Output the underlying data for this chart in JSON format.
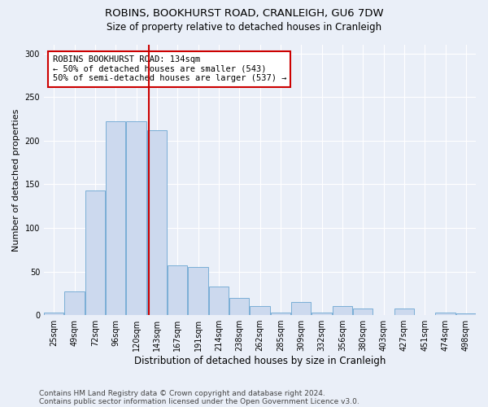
{
  "title1": "ROBINS, BOOKHURST ROAD, CRANLEIGH, GU6 7DW",
  "title2": "Size of property relative to detached houses in Cranleigh",
  "xlabel": "Distribution of detached houses by size in Cranleigh",
  "ylabel": "Number of detached properties",
  "footer1": "Contains HM Land Registry data © Crown copyright and database right 2024.",
  "footer2": "Contains public sector information licensed under the Open Government Licence v3.0.",
  "annotation_line1": "ROBINS BOOKHURST ROAD: 134sqm",
  "annotation_line2": "← 50% of detached houses are smaller (543)",
  "annotation_line3": "50% of semi-detached houses are larger (537) →",
  "bar_color": "#ccd9ee",
  "bar_edge_color": "#7aaed6",
  "vline_color": "#cc0000",
  "vline_x": 134,
  "categories": [
    "25sqm",
    "49sqm",
    "72sqm",
    "96sqm",
    "120sqm",
    "143sqm",
    "167sqm",
    "191sqm",
    "214sqm",
    "238sqm",
    "262sqm",
    "285sqm",
    "309sqm",
    "332sqm",
    "356sqm",
    "380sqm",
    "403sqm",
    "427sqm",
    "451sqm",
    "474sqm",
    "498sqm"
  ],
  "bin_left_edges": [
    12,
    36,
    60,
    84,
    108,
    132,
    156,
    180,
    204,
    228,
    252,
    276,
    300,
    324,
    348,
    372,
    396,
    420,
    444,
    468,
    492
  ],
  "bin_width": 23,
  "values": [
    3,
    27,
    143,
    222,
    222,
    212,
    57,
    55,
    33,
    20,
    10,
    3,
    15,
    3,
    10,
    8,
    0,
    8,
    0,
    3,
    2
  ],
  "ylim": [
    0,
    310
  ],
  "yticks": [
    0,
    50,
    100,
    150,
    200,
    250,
    300
  ],
  "background_color": "#eaeff8",
  "plot_bg_color": "#eaeff8",
  "title_fontsize": 9.5,
  "subtitle_fontsize": 8.5,
  "ylabel_fontsize": 8,
  "xlabel_fontsize": 8.5,
  "tick_fontsize": 7,
  "footer_fontsize": 6.5,
  "annot_fontsize": 7.5
}
